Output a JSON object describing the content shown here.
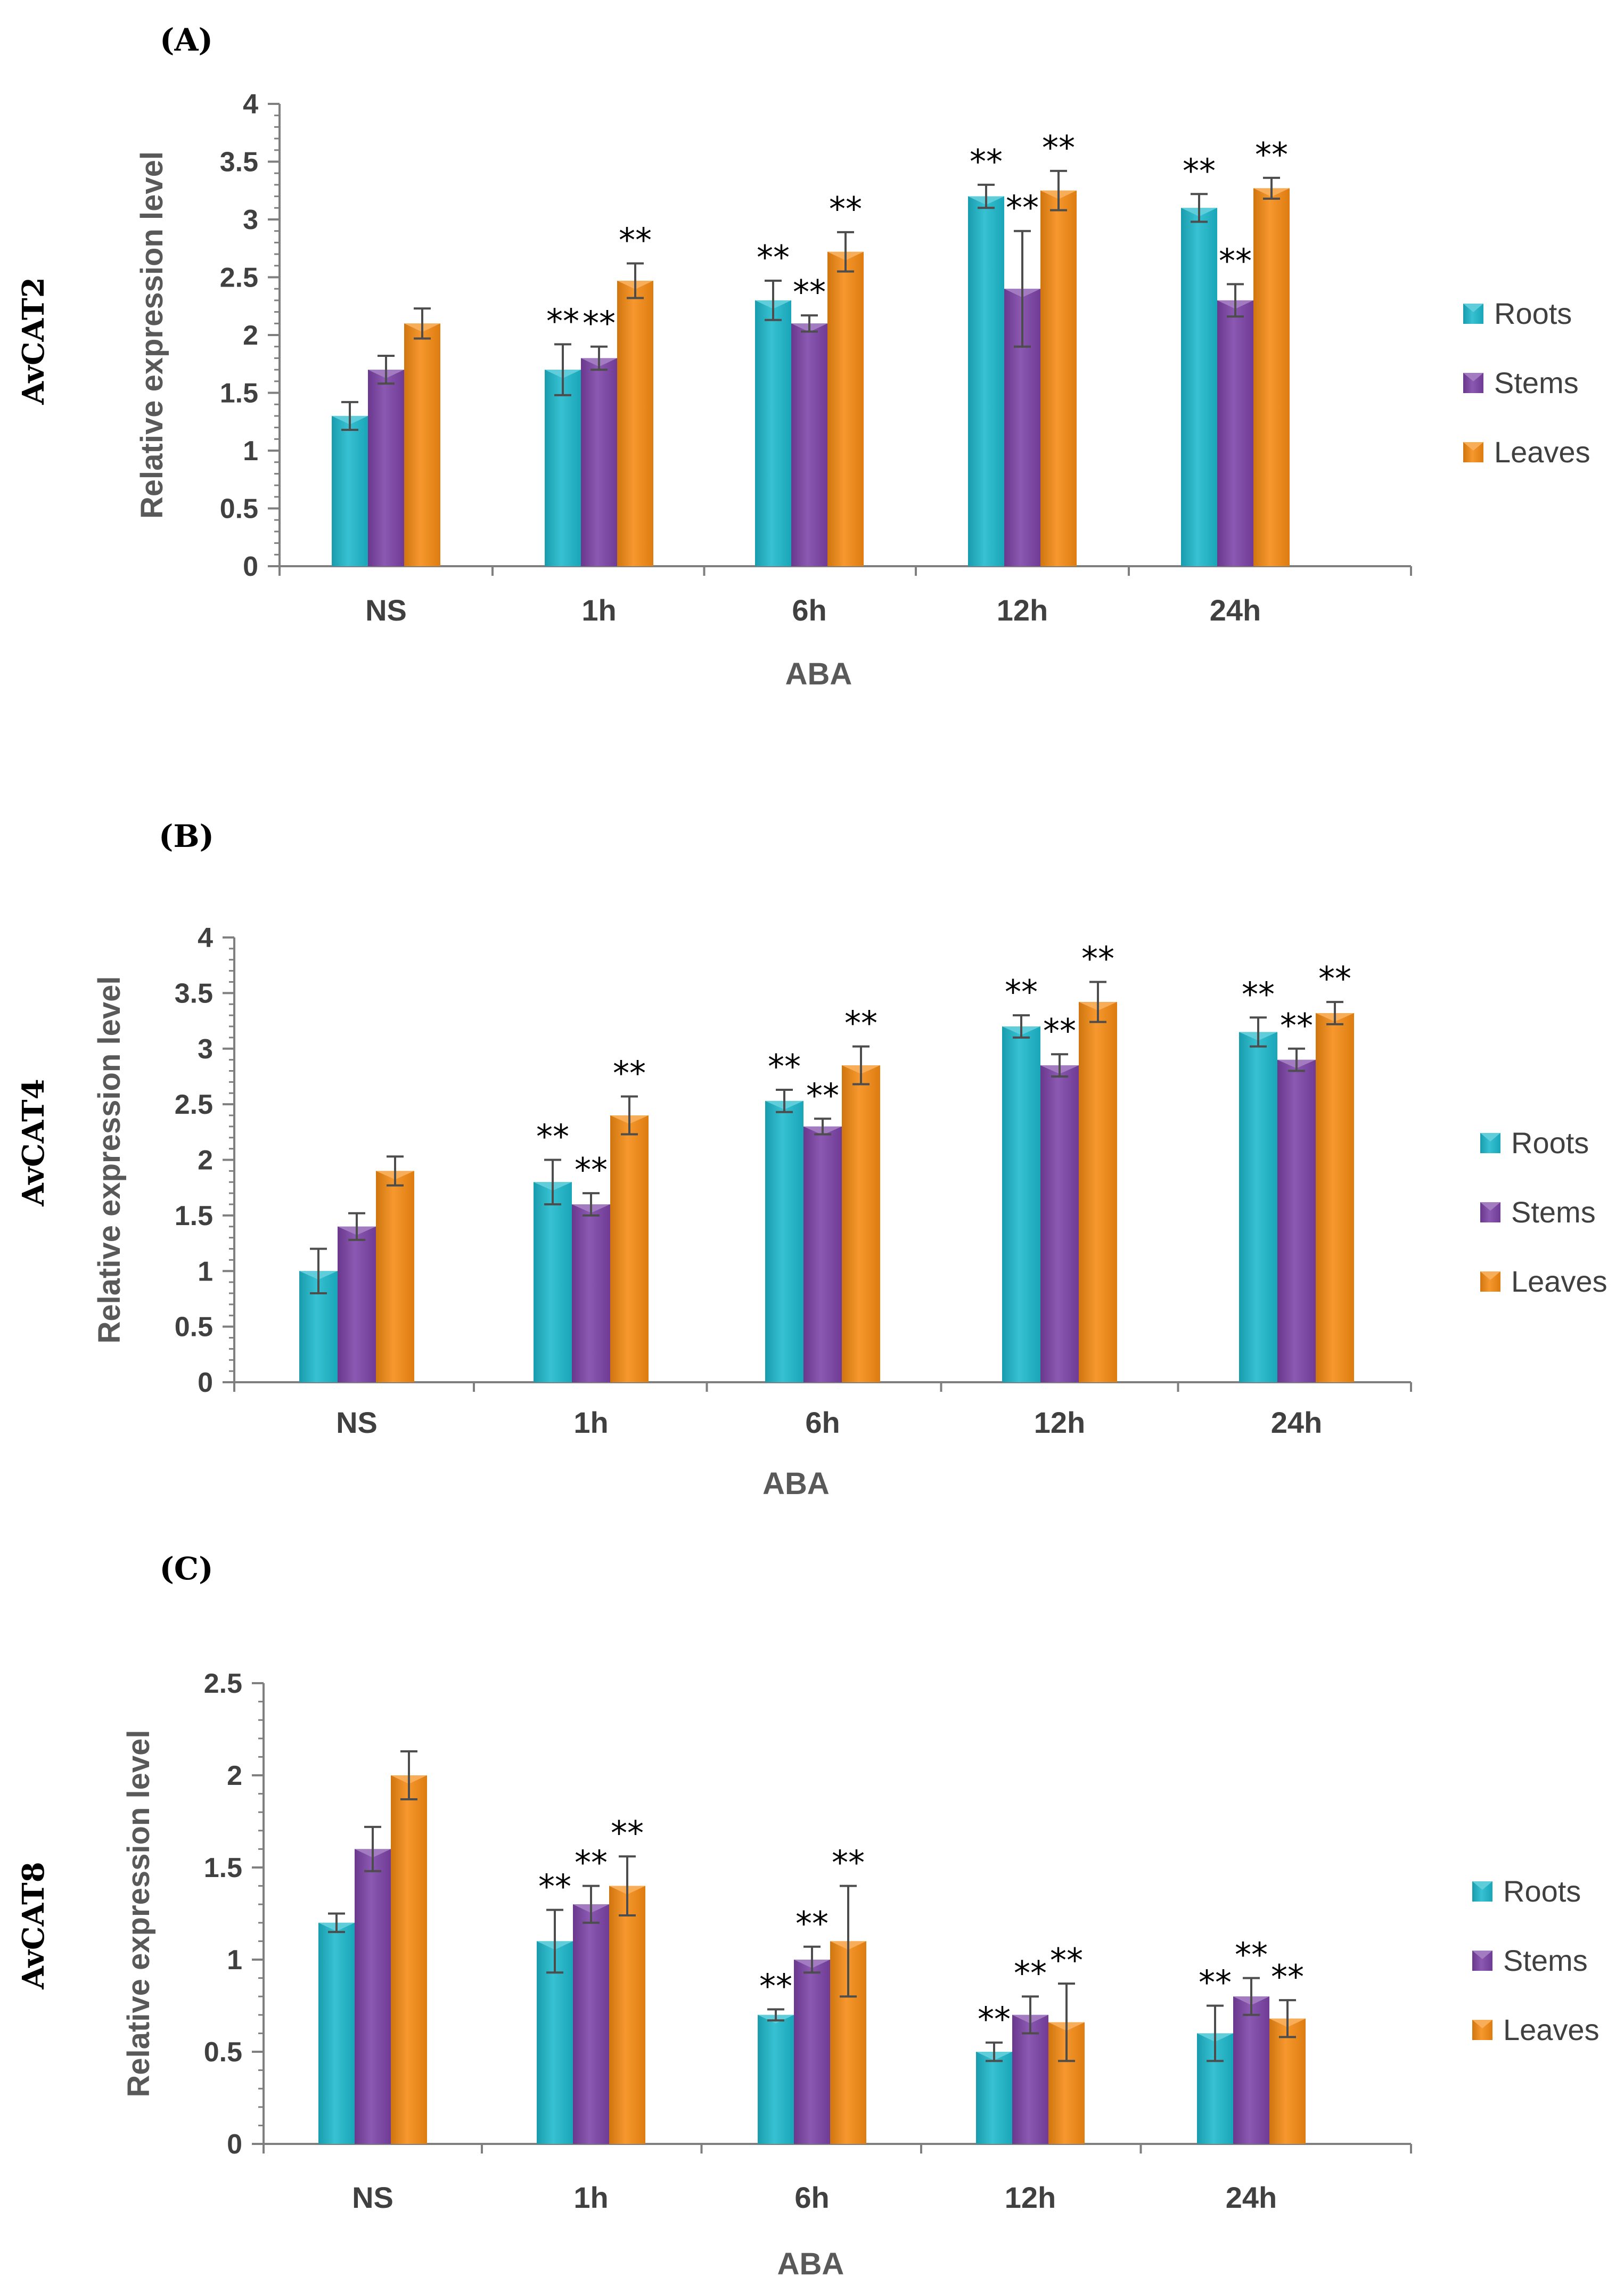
{
  "colors": {
    "Roots": "#1CB8CC",
    "Stems": "#7B42A6",
    "Leaves": "#F58A12",
    "axis": "#7f7f7f",
    "errorbar": "#4d4d4d"
  },
  "chart_data": [
    {
      "type": "bar",
      "panel": "(A)",
      "gene": "AvCAT2",
      "categories": [
        "NS",
        "1h",
        "6h",
        "12h",
        "24h"
      ],
      "xlabel": "ABA",
      "ylabel": "Relative expression level",
      "ylim": [
        0,
        4
      ],
      "yticks": [
        "0",
        "0.5",
        "1",
        "1.5",
        "2",
        "2.5",
        "3",
        "3.5",
        "4"
      ],
      "ytick_values": [
        0,
        0.5,
        1,
        1.5,
        2,
        2.5,
        3,
        3.5,
        4
      ],
      "legend": [
        "Roots",
        "Stems",
        "Leaves"
      ],
      "series": [
        {
          "name": "Roots",
          "values": [
            1.3,
            1.7,
            2.3,
            3.2,
            3.1
          ],
          "errors": [
            0.12,
            0.22,
            0.17,
            0.1,
            0.12
          ],
          "significance": [
            "",
            "**",
            "**",
            "**",
            "**"
          ]
        },
        {
          "name": "Stems",
          "values": [
            1.7,
            1.8,
            2.1,
            2.4,
            2.3
          ],
          "errors": [
            0.12,
            0.1,
            0.07,
            0.5,
            0.14
          ],
          "significance": [
            "",
            "**",
            "**",
            "**",
            "**"
          ]
        },
        {
          "name": "Leaves",
          "values": [
            2.1,
            2.47,
            2.72,
            3.25,
            3.27
          ],
          "errors": [
            0.13,
            0.15,
            0.17,
            0.17,
            0.09
          ],
          "significance": [
            "",
            "**",
            "**",
            "**",
            "**"
          ]
        }
      ]
    },
    {
      "type": "bar",
      "panel": "(B)",
      "gene": "AvCAT4",
      "categories": [
        "NS",
        "1h",
        "6h",
        "12h",
        "24h"
      ],
      "xlabel": "ABA",
      "ylabel": "Relative expression level",
      "ylim": [
        0,
        4
      ],
      "yticks": [
        "0",
        "0.5",
        "1",
        "1.5",
        "2",
        "2.5",
        "3",
        "3.5",
        "4"
      ],
      "ytick_values": [
        0,
        0.5,
        1,
        1.5,
        2,
        2.5,
        3,
        3.5,
        4
      ],
      "legend": [
        "Roots",
        "Stems",
        "Leaves"
      ],
      "series": [
        {
          "name": "Roots",
          "values": [
            1.0,
            1.8,
            2.53,
            3.2,
            3.15
          ],
          "errors": [
            0.2,
            0.2,
            0.1,
            0.1,
            0.13
          ],
          "significance": [
            "",
            "**",
            "**",
            "**",
            "**"
          ]
        },
        {
          "name": "Stems",
          "values": [
            1.4,
            1.6,
            2.3,
            2.85,
            2.9
          ],
          "errors": [
            0.12,
            0.1,
            0.07,
            0.1,
            0.1
          ],
          "significance": [
            "",
            "**",
            "**",
            "**",
            "**"
          ]
        },
        {
          "name": "Leaves",
          "values": [
            1.9,
            2.4,
            2.85,
            3.42,
            3.32
          ],
          "errors": [
            0.13,
            0.17,
            0.17,
            0.18,
            0.1
          ],
          "significance": [
            "",
            "**",
            "**",
            "**",
            "**"
          ]
        }
      ]
    },
    {
      "type": "bar",
      "panel": "(C)",
      "gene": "AvCAT8",
      "categories": [
        "NS",
        "1h",
        "6h",
        "12h",
        "24h"
      ],
      "xlabel": "ABA",
      "ylabel": "Relative expression level",
      "ylim": [
        0,
        2.5
      ],
      "yticks": [
        "0",
        "0.5",
        "1",
        "1.5",
        "2",
        "2.5"
      ],
      "ytick_values": [
        0,
        0.5,
        1,
        1.5,
        2,
        2.5
      ],
      "legend": [
        "Roots",
        "Stems",
        "Leaves"
      ],
      "series": [
        {
          "name": "Roots",
          "values": [
            1.2,
            1.1,
            0.7,
            0.5,
            0.6
          ],
          "errors": [
            0.05,
            0.17,
            0.03,
            0.05,
            0.15
          ],
          "significance": [
            "",
            "**",
            "**",
            "**",
            "**"
          ]
        },
        {
          "name": "Stems",
          "values": [
            1.6,
            1.3,
            1.0,
            0.7,
            0.8
          ],
          "errors": [
            0.12,
            0.1,
            0.07,
            0.1,
            0.1
          ],
          "significance": [
            "",
            "**",
            "**",
            "**",
            "**"
          ]
        },
        {
          "name": "Leaves",
          "values": [
            2.0,
            1.4,
            1.1,
            0.66,
            0.68
          ],
          "errors": [
            0.13,
            0.16,
            0.3,
            0.21,
            0.1
          ],
          "significance": [
            "",
            "**",
            "**",
            "**",
            "**"
          ]
        }
      ]
    }
  ]
}
